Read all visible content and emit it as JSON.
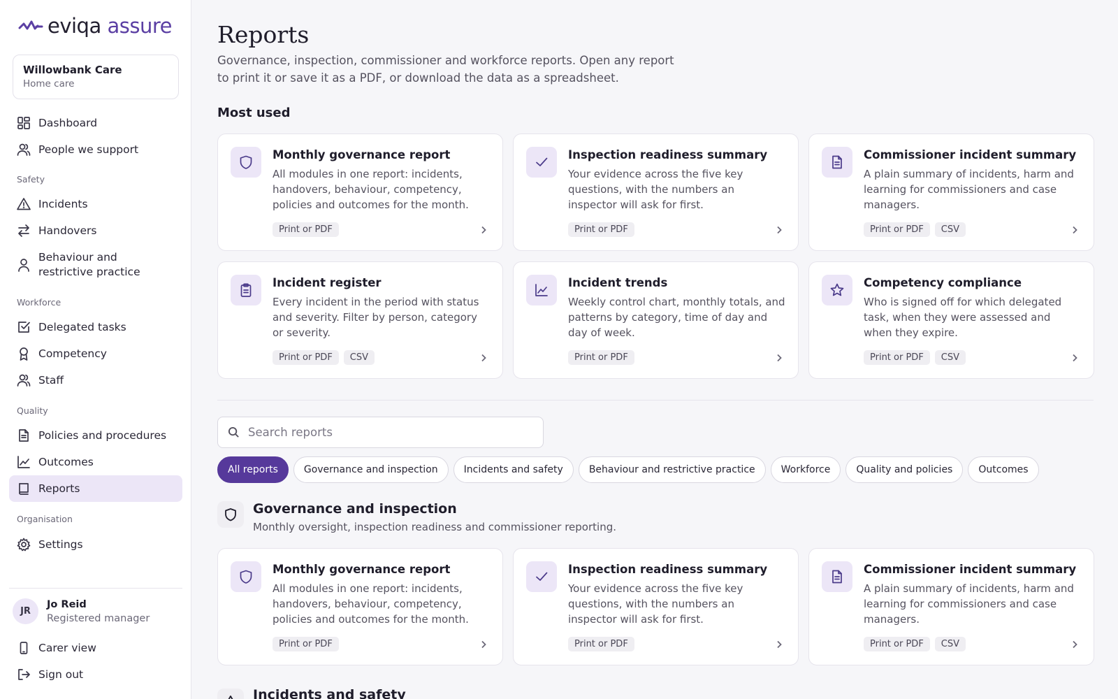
{
  "brand": {
    "name_part1": "eviqa",
    "name_part2": "assure"
  },
  "org": {
    "name": "Willowbank Care",
    "type": "Home care"
  },
  "nav": {
    "dashboard": "Dashboard",
    "people": "People we support",
    "section_safety": "Safety",
    "incidents": "Incidents",
    "handovers": "Handovers",
    "behaviour": "Behaviour and restrictive practice",
    "section_workforce": "Workforce",
    "delegated": "Delegated tasks",
    "competency": "Competency",
    "staff": "Staff",
    "section_quality": "Quality",
    "policies": "Policies and procedures",
    "outcomes": "Outcomes",
    "reports": "Reports",
    "section_org": "Organisation",
    "settings": "Settings"
  },
  "user": {
    "initials": "JR",
    "name": "Jo Reid",
    "role": "Registered manager"
  },
  "footer_links": {
    "carer_view": "Carer view",
    "sign_out": "Sign out"
  },
  "page": {
    "title": "Reports",
    "description": "Governance, inspection, commissioner and workforce reports. Open any report to print it or save it as a PDF, or download the data as a spreadsheet."
  },
  "most_used": {
    "heading": "Most used",
    "cards": [
      {
        "title": "Monthly governance report",
        "desc": "All modules in one report: incidents, handovers, behaviour, competency, policies and outcomes for the month.",
        "badges": [
          "Print or PDF"
        ],
        "icon": "shield-icon"
      },
      {
        "title": "Inspection readiness summary",
        "desc": "Your evidence across the five key questions, with the numbers an inspector will ask for first.",
        "badges": [
          "Print or PDF"
        ],
        "icon": "check-icon"
      },
      {
        "title": "Commissioner incident summary",
        "desc": "A plain summary of incidents, harm and learning for commissioners and case managers.",
        "badges": [
          "Print or PDF",
          "CSV"
        ],
        "icon": "document-icon"
      },
      {
        "title": "Incident register",
        "desc": "Every incident in the period with status and severity. Filter by person, category or severity.",
        "badges": [
          "Print or PDF",
          "CSV"
        ],
        "icon": "clipboard-icon"
      },
      {
        "title": "Incident trends",
        "desc": "Weekly control chart, monthly totals, and patterns by category, time of day and day of week.",
        "badges": [
          "Print or PDF"
        ],
        "icon": "line-chart-icon"
      },
      {
        "title": "Competency compliance",
        "desc": "Who is signed off for which delegated task, when they were assessed and when they expire.",
        "badges": [
          "Print or PDF",
          "CSV"
        ],
        "icon": "star-icon"
      }
    ]
  },
  "search": {
    "placeholder": "Search reports",
    "value": ""
  },
  "filters": [
    "All reports",
    "Governance and inspection",
    "Incidents and safety",
    "Behaviour and restrictive practice",
    "Workforce",
    "Quality and policies",
    "Outcomes"
  ],
  "groups": [
    {
      "title": "Governance and inspection",
      "desc": "Monthly oversight, inspection readiness and commissioner reporting.",
      "icon": "shield-icon",
      "cards": [
        {
          "title": "Monthly governance report",
          "desc": "All modules in one report: incidents, handovers, behaviour, competency, policies and outcomes for the month.",
          "badges": [
            "Print or PDF"
          ],
          "icon": "shield-icon"
        },
        {
          "title": "Inspection readiness summary",
          "desc": "Your evidence across the five key questions, with the numbers an inspector will ask for first.",
          "badges": [
            "Print or PDF"
          ],
          "icon": "check-icon"
        },
        {
          "title": "Commissioner incident summary",
          "desc": "A plain summary of incidents, harm and learning for commissioners and case managers.",
          "badges": [
            "Print or PDF",
            "CSV"
          ],
          "icon": "document-icon"
        }
      ]
    },
    {
      "title": "Incidents and safety",
      "icon": "warning-icon"
    }
  ],
  "colors": {
    "accent": "#56399b",
    "accent_soft": "#ece6f7",
    "background": "#f6f6f9"
  }
}
